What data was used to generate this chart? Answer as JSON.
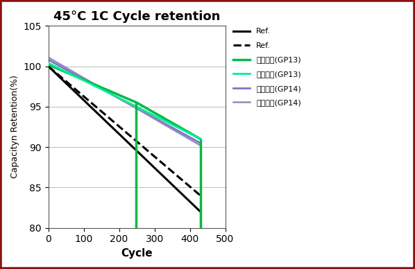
{
  "title": "45°C 1C Cycle retention",
  "xlabel": "Cycle",
  "ylabel": "Capacityn Retention(%)",
  "xlim": [
    0,
    500
  ],
  "ylim": [
    80,
    105
  ],
  "yticks": [
    80,
    85,
    90,
    95,
    100,
    105
  ],
  "xticks": [
    0,
    100,
    200,
    300,
    400,
    500
  ],
  "background": "#ffffff",
  "border_color": "#8B1010",
  "series": [
    {
      "label": "Ref.",
      "color": "#000000",
      "linestyle": "solid",
      "linewidth": 2.2,
      "x": [
        0,
        430
      ],
      "y": [
        100,
        82
      ],
      "zorder": 3
    },
    {
      "label": "Ref.",
      "color": "#000000",
      "linestyle": "dashed",
      "linewidth": 2.2,
      "x": [
        0,
        430
      ],
      "y": [
        100,
        84
      ],
      "zorder": 3
    },
    {
      "label": "국책과제(GP13)",
      "color": "#00BB44",
      "linestyle": "solid",
      "linewidth": 2.5,
      "x": [
        0,
        250,
        430
      ],
      "y": [
        100.2,
        95.5,
        91.0
      ],
      "zorder": 4
    },
    {
      "label": "국책과제(GP13)",
      "color": "#00EE99",
      "linestyle": "solid",
      "linewidth": 2.0,
      "x": [
        0,
        250,
        430
      ],
      "y": [
        100.4,
        95.0,
        91.0
      ],
      "zorder": 4
    },
    {
      "label": "국책과제(GP14)",
      "color": "#7777CC",
      "linestyle": "solid",
      "linewidth": 2.0,
      "x": [
        0,
        430
      ],
      "y": [
        100.8,
        90.5
      ],
      "zorder": 2
    },
    {
      "label": "국책과제(GP14)",
      "color": "#9988BB",
      "linestyle": "solid",
      "linewidth": 1.8,
      "x": [
        0,
        430
      ],
      "y": [
        101.1,
        90.2
      ],
      "zorder": 2
    }
  ],
  "vlines": [
    {
      "x": 248,
      "ymin": 80,
      "ymax": 95.5,
      "color": "#00BB44",
      "linewidth": 2.5,
      "zorder": 4
    },
    {
      "x": 430,
      "ymin": 80,
      "ymax": 91.0,
      "color": "#00BB44",
      "linewidth": 2.5,
      "zorder": 4
    },
    {
      "x": 430,
      "ymin": 80,
      "ymax": 90.5,
      "color": "#7777CC",
      "linewidth": 2.0,
      "zorder": 2
    },
    {
      "x": 430,
      "ymin": 80,
      "ymax": 82.0,
      "color": "#000000",
      "linewidth": 2.2,
      "zorder": 3
    }
  ],
  "legend_entries": [
    {
      "label": "Ref.",
      "color": "#000000",
      "linestyle": "solid",
      "linewidth": 2.2
    },
    {
      "label": "Ref.",
      "color": "#000000",
      "linestyle": "dashed",
      "linewidth": 2.2
    },
    {
      "label": "국책과제(GP13)",
      "color": "#00BB44",
      "linestyle": "solid",
      "linewidth": 2.5
    },
    {
      "label": "국책과제(GP13)",
      "color": "#00EE99",
      "linestyle": "solid",
      "linewidth": 2.0
    },
    {
      "label": "국책과제(GP14)",
      "color": "#7777CC",
      "linestyle": "solid",
      "linewidth": 2.0
    },
    {
      "label": "국책과제(GP14)",
      "color": "#9988BB",
      "linestyle": "solid",
      "linewidth": 1.8
    }
  ]
}
